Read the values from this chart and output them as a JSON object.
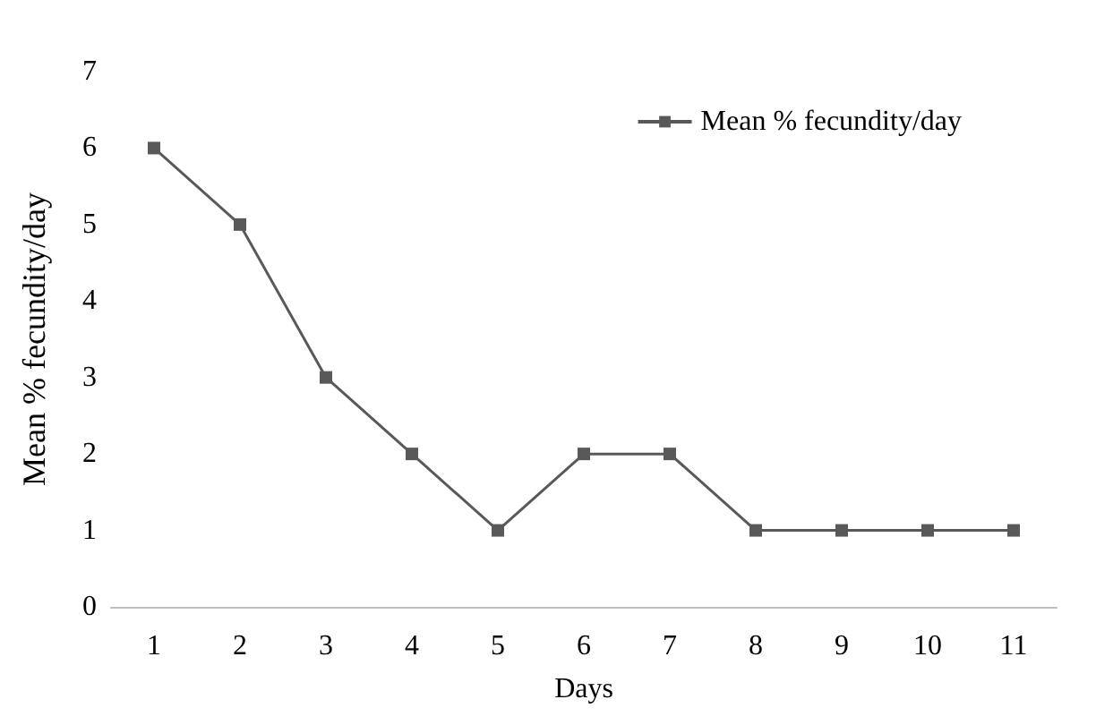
{
  "chart_data": {
    "type": "line",
    "xlabel": "Days",
    "ylabel": "Mean % fecundity/day",
    "categories": [
      "1",
      "2",
      "3",
      "4",
      "5",
      "6",
      "7",
      "8",
      "9",
      "10",
      "11"
    ],
    "series": [
      {
        "name": "Mean % fecundity/day",
        "color": "#595959",
        "values": [
          6,
          5,
          3,
          2,
          1,
          2,
          2,
          1,
          1,
          1,
          1
        ]
      }
    ],
    "ylim": [
      0,
      7
    ],
    "yticks": [
      0,
      1,
      2,
      3,
      4,
      5,
      6,
      7
    ],
    "grid": false,
    "legend": "top right",
    "marker": "square",
    "line_style": "solid"
  }
}
